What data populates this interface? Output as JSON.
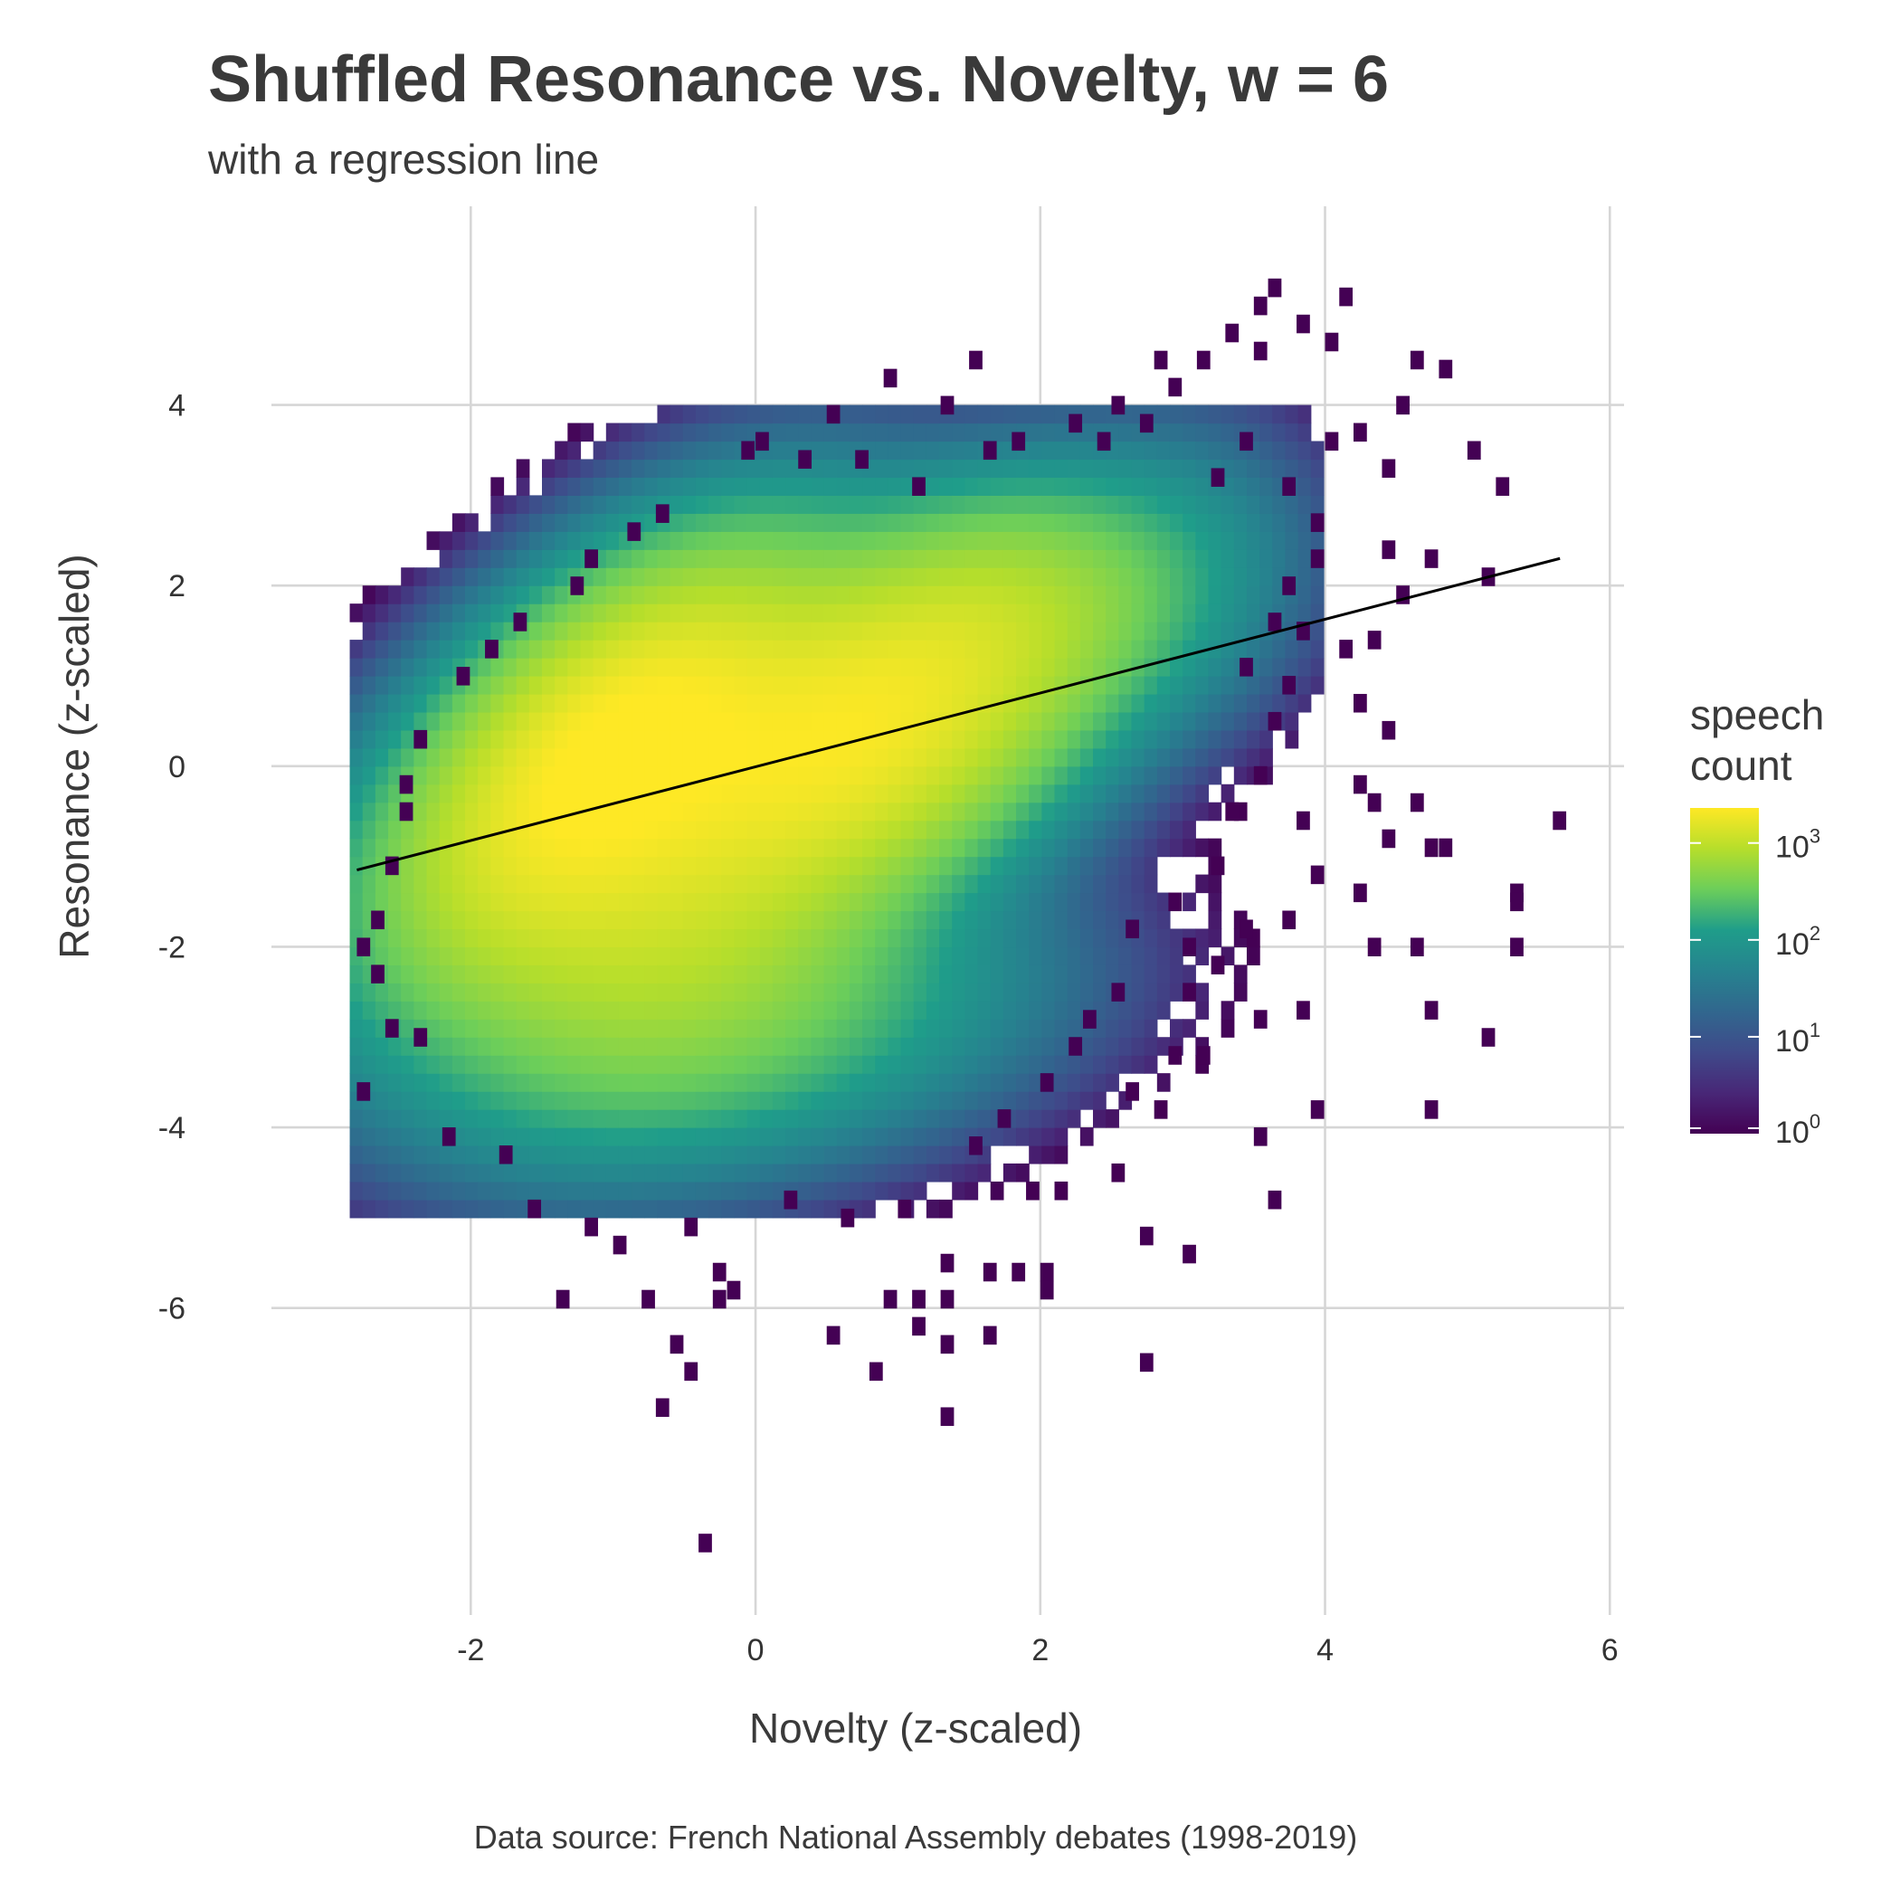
{
  "chart_data": {
    "type": "heatmap",
    "title": "Shuffled Resonance vs. Novelty, w = 6",
    "subtitle": "with a regression line",
    "xlabel": "Novelty (z-scaled)",
    "ylabel": "Resonance (z-scaled)",
    "caption": "Data source: French National Assembly debates (1998-2019)",
    "xlim": [
      -3.4,
      6.1
    ],
    "ylim": [
      -9.4,
      6.2
    ],
    "x_ticks": [
      {
        "value": -2,
        "label": "-2"
      },
      {
        "value": 0,
        "label": "0"
      },
      {
        "value": 2,
        "label": "2"
      },
      {
        "value": 4,
        "label": "4"
      },
      {
        "value": 6,
        "label": "6"
      }
    ],
    "y_ticks": [
      {
        "value": 4,
        "label": "4"
      },
      {
        "value": 2,
        "label": "2"
      },
      {
        "value": 0,
        "label": "0"
      },
      {
        "value": -2,
        "label": "-2"
      },
      {
        "value": -4,
        "label": "-4"
      },
      {
        "value": -6,
        "label": "-6"
      }
    ],
    "grid": true,
    "bin_width": [
      0.09,
      0.2
    ],
    "density_components": [
      {
        "x": -1.0,
        "y": 0.2,
        "sx": 0.75,
        "sy": 1.15,
        "rho": 0.55,
        "weight": 2300
      },
      {
        "x": 0.7,
        "y": 0.4,
        "sx": 0.85,
        "sy": 1.05,
        "rho": 0.45,
        "weight": 2000
      },
      {
        "x": -0.8,
        "y": -1.6,
        "sx": 0.95,
        "sy": 1.15,
        "rho": 0.15,
        "weight": 900
      },
      {
        "x": 1.8,
        "y": 1.7,
        "sx": 0.7,
        "sy": 0.75,
        "rho": 0.2,
        "weight": 420
      },
      {
        "x": 0.0,
        "y": -2.9,
        "sx": 1.1,
        "sy": 0.8,
        "rho": 0.3,
        "weight": 160
      },
      {
        "x": 2.9,
        "y": 2.2,
        "sx": 0.55,
        "sy": 0.9,
        "rho": 0.1,
        "weight": 55
      }
    ],
    "sparse_points": [
      [
        3.6,
        5.2
      ],
      [
        3.5,
        5.0
      ],
      [
        4.1,
        5.1
      ],
      [
        3.3,
        4.7
      ],
      [
        3.8,
        4.8
      ],
      [
        4.0,
        4.6
      ],
      [
        3.5,
        4.5
      ],
      [
        3.1,
        4.4
      ],
      [
        2.9,
        4.1
      ],
      [
        2.8,
        4.4
      ],
      [
        4.6,
        4.4
      ],
      [
        4.8,
        4.3
      ],
      [
        1.5,
        4.4
      ],
      [
        0.9,
        4.2
      ],
      [
        1.3,
        3.9
      ],
      [
        0.5,
        3.8
      ],
      [
        4.5,
        3.9
      ],
      [
        4.2,
        3.6
      ],
      [
        5.0,
        3.4
      ],
      [
        5.2,
        3.0
      ],
      [
        4.4,
        3.2
      ],
      [
        4.0,
        3.5
      ],
      [
        3.9,
        2.6
      ],
      [
        4.4,
        2.3
      ],
      [
        4.7,
        2.2
      ],
      [
        5.1,
        2.0
      ],
      [
        4.5,
        1.8
      ],
      [
        4.3,
        1.3
      ],
      [
        4.1,
        1.2
      ],
      [
        4.2,
        0.6
      ],
      [
        4.4,
        0.3
      ],
      [
        3.7,
        0.8
      ],
      [
        4.2,
        -0.3
      ],
      [
        4.3,
        -0.5
      ],
      [
        4.6,
        -0.5
      ],
      [
        4.4,
        -0.9
      ],
      [
        4.8,
        -1.0
      ],
      [
        3.8,
        -0.7
      ],
      [
        5.6,
        -0.7
      ],
      [
        4.2,
        -1.5
      ],
      [
        3.9,
        -1.3
      ],
      [
        4.7,
        -1.0
      ],
      [
        5.3,
        -1.5
      ],
      [
        5.3,
        -1.6
      ],
      [
        4.3,
        -2.1
      ],
      [
        4.6,
        -2.1
      ],
      [
        5.3,
        -2.1
      ],
      [
        3.7,
        -1.8
      ],
      [
        3.4,
        -1.9
      ],
      [
        3.0,
        -2.1
      ],
      [
        3.2,
        -2.3
      ],
      [
        4.7,
        -2.8
      ],
      [
        5.1,
        -3.1
      ],
      [
        3.8,
        -2.8
      ],
      [
        3.5,
        -2.9
      ],
      [
        3.9,
        -3.9
      ],
      [
        4.7,
        -3.9
      ],
      [
        3.5,
        -4.2
      ],
      [
        3.6,
        -4.9
      ],
      [
        3.0,
        -5.5
      ],
      [
        2.7,
        -5.3
      ],
      [
        2.7,
        -6.7
      ],
      [
        2.0,
        -5.7
      ],
      [
        2.0,
        -5.9
      ],
      [
        1.8,
        -5.7
      ],
      [
        1.6,
        -5.7
      ],
      [
        1.3,
        -5.6
      ],
      [
        1.3,
        -6.0
      ],
      [
        1.3,
        -6.5
      ],
      [
        1.1,
        -6.0
      ],
      [
        1.1,
        -6.3
      ],
      [
        0.9,
        -6.0
      ],
      [
        0.8,
        -6.8
      ],
      [
        0.5,
        -6.4
      ],
      [
        -0.2,
        -5.9
      ],
      [
        -0.3,
        -5.7
      ],
      [
        -0.3,
        -6.0
      ],
      [
        -0.6,
        -6.5
      ],
      [
        -0.8,
        -6.0
      ],
      [
        -0.5,
        -6.8
      ],
      [
        -0.7,
        -7.2
      ],
      [
        -1.4,
        -6.0
      ],
      [
        -0.4,
        -8.7
      ],
      [
        1.3,
        -7.3
      ],
      [
        1.6,
        -6.4
      ],
      [
        -1.6,
        -5.0
      ],
      [
        -1.0,
        -5.4
      ],
      [
        -1.2,
        -5.2
      ],
      [
        -2.8,
        -3.7
      ],
      [
        -2.8,
        -2.1
      ],
      [
        -2.7,
        -1.8
      ],
      [
        -2.5,
        -0.6
      ],
      [
        -2.4,
        0.2
      ],
      [
        -2.1,
        0.9
      ],
      [
        -1.9,
        1.2
      ],
      [
        -1.7,
        1.5
      ],
      [
        -1.3,
        1.9
      ],
      [
        -1.2,
        2.2
      ],
      [
        -0.9,
        2.5
      ],
      [
        -0.7,
        2.7
      ],
      [
        0.0,
        3.5
      ],
      [
        -0.1,
        3.4
      ],
      [
        0.3,
        3.3
      ],
      [
        0.7,
        3.3
      ],
      [
        1.1,
        3.0
      ],
      [
        1.6,
        3.4
      ],
      [
        1.8,
        3.5
      ],
      [
        2.2,
        3.7
      ],
      [
        2.4,
        3.5
      ],
      [
        2.7,
        3.7
      ],
      [
        2.5,
        3.9
      ],
      [
        3.2,
        3.1
      ],
      [
        3.4,
        3.5
      ],
      [
        3.7,
        3.0
      ],
      [
        3.9,
        2.2
      ],
      [
        3.7,
        1.9
      ],
      [
        3.6,
        1.5
      ],
      [
        3.8,
        1.4
      ],
      [
        3.4,
        1.0
      ],
      [
        3.6,
        0.4
      ],
      [
        3.5,
        -0.2
      ],
      [
        3.3,
        -0.6
      ],
      [
        3.2,
        -1.2
      ],
      [
        2.9,
        -1.6
      ],
      [
        2.6,
        -1.9
      ],
      [
        2.5,
        -2.6
      ],
      [
        2.3,
        -2.9
      ],
      [
        2.2,
        -3.2
      ],
      [
        2.0,
        -3.6
      ],
      [
        1.7,
        -4.0
      ],
      [
        1.5,
        -4.3
      ],
      [
        1.9,
        -4.8
      ],
      [
        2.1,
        -4.8
      ],
      [
        2.5,
        -4.6
      ],
      [
        2.8,
        -3.9
      ],
      [
        2.6,
        -3.7
      ],
      [
        3.0,
        -2.6
      ],
      [
        2.9,
        -3.3
      ],
      [
        3.1,
        -3.3
      ],
      [
        1.0,
        -5.0
      ],
      [
        0.6,
        -5.1
      ],
      [
        0.2,
        -4.9
      ],
      [
        -0.5,
        -5.2
      ],
      [
        -1.8,
        -4.4
      ],
      [
        -2.2,
        -4.2
      ],
      [
        -2.4,
        -3.1
      ],
      [
        -2.6,
        -3.0
      ],
      [
        -2.7,
        -2.4
      ],
      [
        -2.6,
        -1.2
      ],
      [
        -2.5,
        -0.3
      ]
    ],
    "regression_line": {
      "x": [
        -2.8,
        5.65
      ],
      "y": [
        -1.15,
        2.3
      ],
      "color": "#000000"
    },
    "legend": {
      "title_lines": [
        "speech",
        "count"
      ],
      "position": "right",
      "scale": "log10",
      "range": [
        1,
        2300
      ],
      "labels": [
        {
          "base": "10",
          "exp": "3",
          "value": 1000
        },
        {
          "base": "10",
          "exp": "2",
          "value": 100
        },
        {
          "base": "10",
          "exp": "1",
          "value": 10
        },
        {
          "base": "10",
          "exp": "0",
          "value": 1
        }
      ]
    },
    "colormap": "viridis",
    "viridis_stops": [
      "#440154",
      "#482777",
      "#3f4a8a",
      "#31678e",
      "#26838f",
      "#1f9d8a",
      "#6cce5a",
      "#b6de2b",
      "#fee825"
    ]
  }
}
